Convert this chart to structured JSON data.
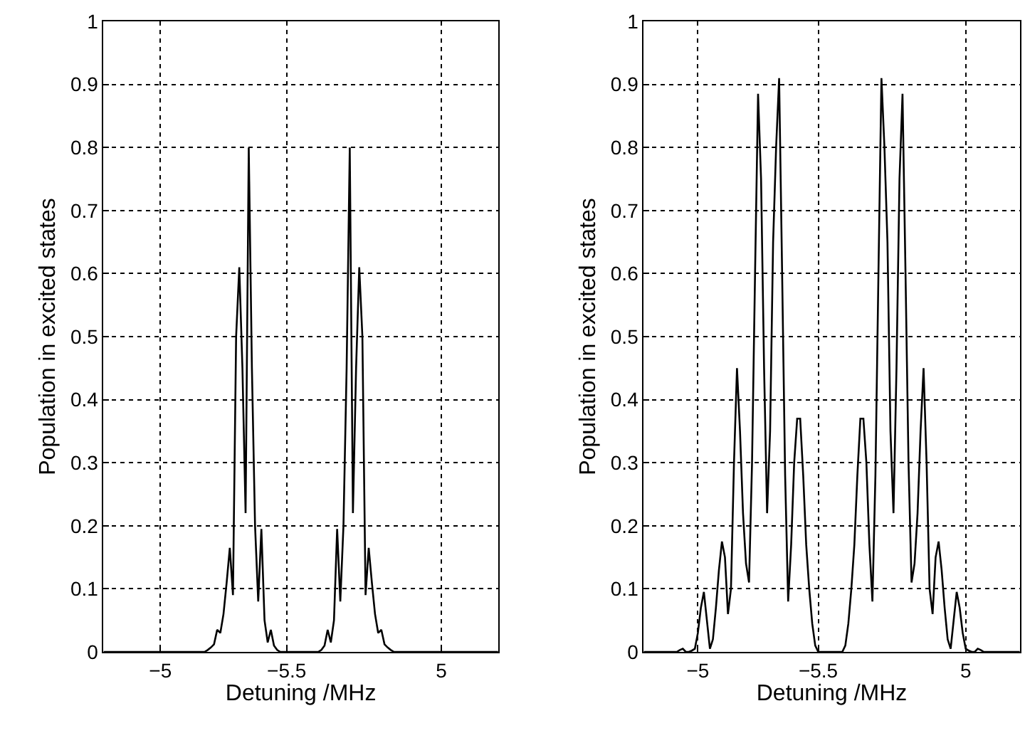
{
  "chart_data": [
    {
      "type": "line",
      "xlabel": "Detuning /MHz",
      "ylabel": "Population in excited states",
      "grid": true,
      "line_style": "solid",
      "categories": [
        null,
        null,
        null,
        null,
        null,
        null,
        null,
        null,
        null,
        null,
        null,
        null,
        null,
        null,
        null,
        null,
        null,
        null,
        "−5",
        null,
        null,
        null,
        null,
        null,
        null,
        null,
        null,
        null,
        null,
        null,
        null,
        null,
        null,
        null,
        null,
        null,
        null,
        null,
        null,
        null,
        null,
        null,
        null,
        null,
        null,
        null,
        null,
        null,
        null,
        null,
        null,
        null,
        null,
        null,
        null,
        null,
        null,
        null,
        "−5.5",
        null,
        null,
        null,
        null,
        null,
        null,
        null,
        null,
        null,
        null,
        null,
        null,
        null,
        null,
        null,
        null,
        null,
        null,
        null,
        null,
        null,
        null,
        null,
        null,
        null,
        null,
        null,
        null,
        null,
        null,
        null,
        null,
        null,
        null,
        null,
        null,
        null,
        null,
        null,
        null,
        null,
        null,
        null,
        null,
        null,
        null,
        null,
        null,
        "5",
        null,
        null,
        null,
        null,
        null,
        null,
        null,
        null,
        null,
        null,
        null,
        null,
        null,
        null,
        null,
        null,
        null,
        null
      ],
      "series": [
        {
          "color": "#000000",
          "values": [
            0,
            0,
            0,
            0,
            0,
            0,
            0,
            0,
            0,
            0,
            0,
            0,
            0,
            0,
            0,
            0,
            0,
            0,
            0,
            0,
            0,
            0,
            0,
            0,
            0,
            0,
            0,
            0,
            0,
            0,
            0,
            0,
            0,
            0.003,
            0.007,
            0.012,
            0.035,
            0.03,
            0.06,
            0.11,
            0.165,
            0.09,
            0.5,
            0.61,
            0.45,
            0.22,
            0.8,
            0.45,
            0.2,
            0.08,
            0.195,
            0.05,
            0.015,
            0.035,
            0.01,
            0.003,
            0,
            0,
            0,
            0,
            0,
            0,
            0,
            0,
            0,
            0,
            0,
            0,
            0,
            0.003,
            0.01,
            0.035,
            0.015,
            0.05,
            0.195,
            0.08,
            0.2,
            0.45,
            0.8,
            0.22,
            0.45,
            0.61,
            0.5,
            0.09,
            0.165,
            0.11,
            0.06,
            0.03,
            0.035,
            0.012,
            0.007,
            0.003,
            0,
            0,
            0,
            0,
            0,
            0,
            0,
            0,
            0,
            0,
            0,
            0,
            0,
            0,
            0,
            0,
            0,
            0,
            0,
            0,
            0,
            0,
            0,
            0,
            0,
            0,
            0,
            0,
            0,
            0,
            0,
            0,
            0,
            0
          ]
        }
      ],
      "ylim": [
        0,
        1
      ],
      "yticks": [
        0,
        0.1,
        0.2,
        0.3,
        0.4,
        0.5,
        0.6,
        0.7,
        0.8,
        0.9,
        1
      ]
    },
    {
      "type": "line",
      "xlabel": "Detuning /MHz",
      "ylabel": "Population in excited states",
      "grid": true,
      "line_style": "solid",
      "categories": [
        null,
        null,
        null,
        null,
        null,
        null,
        null,
        null,
        null,
        null,
        null,
        null,
        null,
        null,
        null,
        null,
        null,
        null,
        "−5",
        null,
        null,
        null,
        null,
        null,
        null,
        null,
        null,
        null,
        null,
        null,
        null,
        null,
        null,
        null,
        null,
        null,
        null,
        null,
        null,
        null,
        null,
        null,
        null,
        null,
        null,
        null,
        null,
        null,
        null,
        null,
        null,
        null,
        null,
        null,
        null,
        null,
        null,
        null,
        "−5.5",
        null,
        null,
        null,
        null,
        null,
        null,
        null,
        null,
        null,
        null,
        null,
        null,
        null,
        null,
        null,
        null,
        null,
        null,
        null,
        null,
        null,
        null,
        null,
        null,
        null,
        null,
        null,
        null,
        null,
        null,
        null,
        null,
        null,
        null,
        null,
        null,
        null,
        null,
        null,
        null,
        null,
        null,
        null,
        null,
        null,
        null,
        null,
        null,
        "5",
        null,
        null,
        null,
        null,
        null,
        null,
        null,
        null,
        null,
        null,
        null,
        null,
        null,
        null,
        null,
        null,
        null,
        null
      ],
      "series": [
        {
          "color": "#000000",
          "values": [
            0,
            0,
            0,
            0,
            0,
            0,
            0,
            0,
            0,
            0,
            0,
            0,
            0.003,
            0.005,
            0,
            0,
            0.002,
            0.005,
            0.03,
            0.07,
            0.095,
            0.05,
            0.005,
            0.02,
            0.07,
            0.13,
            0.175,
            0.15,
            0.06,
            0.1,
            0.3,
            0.45,
            0.35,
            0.22,
            0.14,
            0.11,
            0.3,
            0.6,
            0.885,
            0.75,
            0.45,
            0.22,
            0.35,
            0.65,
            0.8,
            0.91,
            0.6,
            0.28,
            0.08,
            0.17,
            0.3,
            0.37,
            0.37,
            0.28,
            0.17,
            0.1,
            0.045,
            0.01,
            0,
            0,
            0,
            0,
            0,
            0,
            0,
            0,
            0,
            0.01,
            0.045,
            0.1,
            0.17,
            0.28,
            0.37,
            0.37,
            0.3,
            0.17,
            0.08,
            0.28,
            0.6,
            0.91,
            0.8,
            0.65,
            0.35,
            0.22,
            0.45,
            0.75,
            0.885,
            0.6,
            0.3,
            0.11,
            0.14,
            0.22,
            0.35,
            0.45,
            0.3,
            0.1,
            0.06,
            0.15,
            0.175,
            0.13,
            0.07,
            0.02,
            0.005,
            0.05,
            0.095,
            0.07,
            0.03,
            0.005,
            0.002,
            0,
            0,
            0.005,
            0.003,
            0,
            0,
            0,
            0,
            0,
            0,
            0,
            0,
            0,
            0,
            0,
            0,
            0
          ]
        }
      ],
      "ylim": [
        0,
        1
      ],
      "yticks": [
        0,
        0.1,
        0.2,
        0.3,
        0.4,
        0.5,
        0.6,
        0.7,
        0.8,
        0.9,
        1
      ]
    }
  ]
}
